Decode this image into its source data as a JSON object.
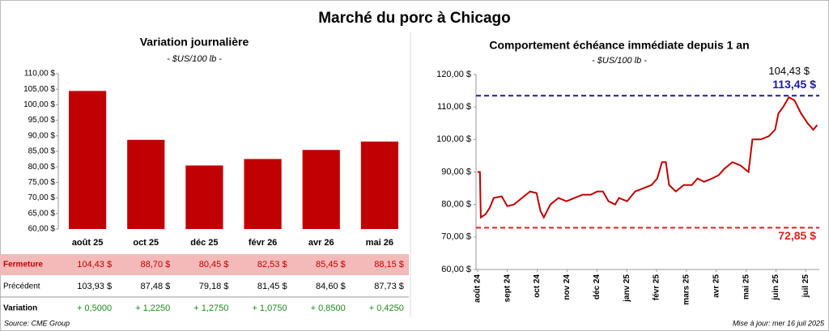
{
  "title": "Marché du porc à Chicago",
  "chart_data": [
    {
      "type": "bar",
      "title": "Variation journalière",
      "subtitle": "- $US/100 lb -",
      "categories": [
        "août 25",
        "oct 25",
        "déc 25",
        "févr 26",
        "avr 26",
        "mai 26"
      ],
      "values": [
        104.43,
        88.7,
        80.45,
        82.53,
        85.45,
        88.15
      ],
      "value_labels": [
        "104,43  $",
        "88,70  $",
        "80,45  $",
        "82,53  $",
        "85,45  $",
        "88,15  $"
      ],
      "color": "#c00000",
      "ylim": [
        60,
        110
      ],
      "yticks": [
        {
          "value": 60,
          "label": "60,00 $"
        },
        {
          "value": 65,
          "label": "65,00 $"
        },
        {
          "value": 70,
          "label": "70,00 $"
        },
        {
          "value": 75,
          "label": "75,00 $"
        },
        {
          "value": 80,
          "label": "80,00 $"
        },
        {
          "value": 85,
          "label": "85,00 $"
        },
        {
          "value": 90,
          "label": "90,00 $"
        },
        {
          "value": 95,
          "label": "95,00 $"
        },
        {
          "value": 100,
          "label": "100,00 $"
        },
        {
          "value": 105,
          "label": "105,00 $"
        },
        {
          "value": 110,
          "label": "110,00 $"
        }
      ]
    },
    {
      "type": "line",
      "title": "Comportement échéance immédiate depuis 1 an",
      "subtitle": "- $US/100 lb -",
      "x": [
        0,
        0.08,
        0.11,
        0.27,
        0.41,
        0.54,
        0.81,
        1.0,
        1.22,
        1.49,
        1.76,
        1.98,
        2.11,
        2.22,
        2.44,
        2.71,
        2.98,
        3.25,
        3.52,
        3.79,
        4.01,
        4.2,
        4.39,
        4.61,
        4.74,
        5.01,
        5.28,
        5.56,
        5.83,
        6.02,
        6.18,
        6.31,
        6.42,
        6.64,
        6.91,
        7.18,
        7.37,
        7.59,
        7.86,
        8.08,
        8.27,
        8.54,
        8.81,
        9.08,
        9.21,
        9.49,
        9.76,
        9.97,
        10.08,
        10.24,
        10.43,
        10.62,
        10.84,
        11.06,
        11.25,
        11.38
      ],
      "series": [
        {
          "color": "#c00000",
          "values": [
            90,
            90,
            76,
            77,
            79,
            82,
            82.5,
            79.5,
            80,
            82,
            84,
            83.5,
            78,
            76,
            80,
            82,
            81,
            82,
            83,
            83,
            84,
            84,
            81,
            80,
            82,
            81,
            84,
            85,
            86,
            88,
            93,
            93,
            86,
            84,
            86,
            86,
            88,
            87,
            88,
            89,
            91,
            93,
            92,
            90,
            100,
            100,
            101,
            103,
            108,
            110,
            113,
            112,
            108,
            105,
            103,
            104.43
          ]
        }
      ],
      "last_label": "104,43 $",
      "lines": [
        {
          "value": 113.45,
          "label": "113,45 $",
          "color": "#1a1aa0"
        },
        {
          "value": 72.85,
          "label": "72,85 $",
          "color": "#e02020"
        }
      ],
      "xlim": [
        -0.05,
        11.45
      ],
      "xticks": [
        {
          "value": 0,
          "label": "août 24"
        },
        {
          "value": 1,
          "label": "sept 24"
        },
        {
          "value": 2,
          "label": "oct 24"
        },
        {
          "value": 3,
          "label": "nov 24"
        },
        {
          "value": 4,
          "label": "déc 24"
        },
        {
          "value": 5,
          "label": "janv 25"
        },
        {
          "value": 6,
          "label": "févr 25"
        },
        {
          "value": 7,
          "label": "mars 25"
        },
        {
          "value": 8,
          "label": "avr 25"
        },
        {
          "value": 9,
          "label": "mai 25"
        },
        {
          "value": 10,
          "label": "juin 25"
        },
        {
          "value": 11,
          "label": "juil 25"
        }
      ],
      "ylim": [
        60,
        120
      ],
      "yticks": [
        {
          "value": 60,
          "label": "60,00 $"
        },
        {
          "value": 70,
          "label": "70,00 $"
        },
        {
          "value": 80,
          "label": "80,00 $"
        },
        {
          "value": 90,
          "label": "90,00 $"
        },
        {
          "value": 100,
          "label": "100,00 $"
        },
        {
          "value": 110,
          "label": "110,00 $"
        },
        {
          "value": 120,
          "label": "120,00 $"
        }
      ]
    }
  ],
  "table": {
    "rows": [
      {
        "label": "Fermeture"
      },
      {
        "label": "Précédent",
        "cells": [
          "103,93  $",
          "87,48  $",
          "79,18  $",
          "81,45  $",
          "84,60  $",
          "87,73  $"
        ]
      },
      {
        "label": "Variation",
        "cells": [
          "+ 0,5000",
          "+ 1,2250",
          "+ 1,2750",
          "+ 1,0750",
          "+ 0,8500",
          "+ 0,4250"
        ]
      }
    ]
  },
  "source": "Source: CME Group",
  "updated": "Mise à jour: mer 16 juil 2025"
}
